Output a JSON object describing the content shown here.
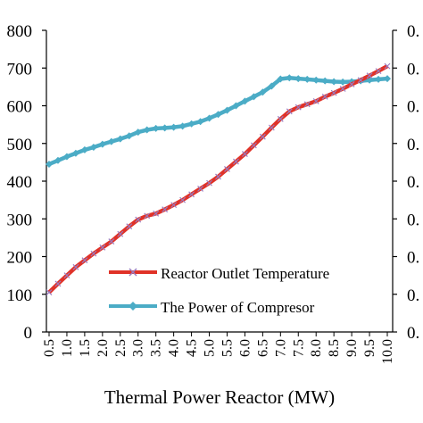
{
  "chart_data": {
    "type": "line",
    "xlabel": "Thermal Power Reactor (MW)",
    "x": [
      0.5,
      0.75,
      1.0,
      1.25,
      1.5,
      1.75,
      2.0,
      2.25,
      2.5,
      2.75,
      3.0,
      3.25,
      3.5,
      3.75,
      4.0,
      4.25,
      4.5,
      4.75,
      5.0,
      5.25,
      5.5,
      5.75,
      6.0,
      6.25,
      6.5,
      6.75,
      7.0,
      7.25,
      7.5,
      7.75,
      8.0,
      8.25,
      8.5,
      8.75,
      9.0,
      9.25,
      9.5,
      9.75,
      10.0
    ],
    "x_tick_labels": [
      "0.5",
      "1.0",
      "1.5",
      "2.0",
      "2.5",
      "3.0",
      "3.5",
      "4.0",
      "4.5",
      "5.0",
      "5.5",
      "6.0",
      "6.5",
      "7.0",
      "7.5",
      "8.0",
      "8.5",
      "9.0",
      "9.5",
      "10.0"
    ],
    "y_left_ticks": [
      "0",
      "100",
      "200",
      "300",
      "400",
      "500",
      "600",
      "700",
      "800"
    ],
    "y_left_visible_ticks": [
      "0",
      "100",
      "200",
      "300",
      "400",
      "500",
      "600",
      "700",
      "800"
    ],
    "y_left_lim": [
      0,
      800
    ],
    "y_right_tick_label": "0.",
    "legend_placement": "bottom-right",
    "series": [
      {
        "name": "Reactor Outlet Temperature",
        "axis": "left",
        "color": "#e03228",
        "marker_color": "#9b7bbf",
        "values": [
          105,
          128,
          150,
          172,
          190,
          208,
          224,
          240,
          260,
          280,
          298,
          308,
          314,
          325,
          337,
          350,
          365,
          380,
          395,
          412,
          432,
          452,
          472,
          495,
          518,
          542,
          565,
          585,
          596,
          604,
          612,
          624,
          634,
          645,
          657,
          668,
          680,
          692,
          705
        ]
      },
      {
        "name": "The Power of Compresor",
        "axis": "right",
        "color": "#4bacc6",
        "values_left_scale": [
          445,
          455,
          465,
          474,
          483,
          490,
          498,
          505,
          512,
          520,
          530,
          536,
          540,
          541,
          543,
          546,
          552,
          558,
          567,
          577,
          588,
          600,
          612,
          624,
          636,
          652,
          671,
          674,
          672,
          670,
          668,
          666,
          664,
          663,
          664,
          666,
          668,
          670,
          672
        ]
      }
    ]
  }
}
